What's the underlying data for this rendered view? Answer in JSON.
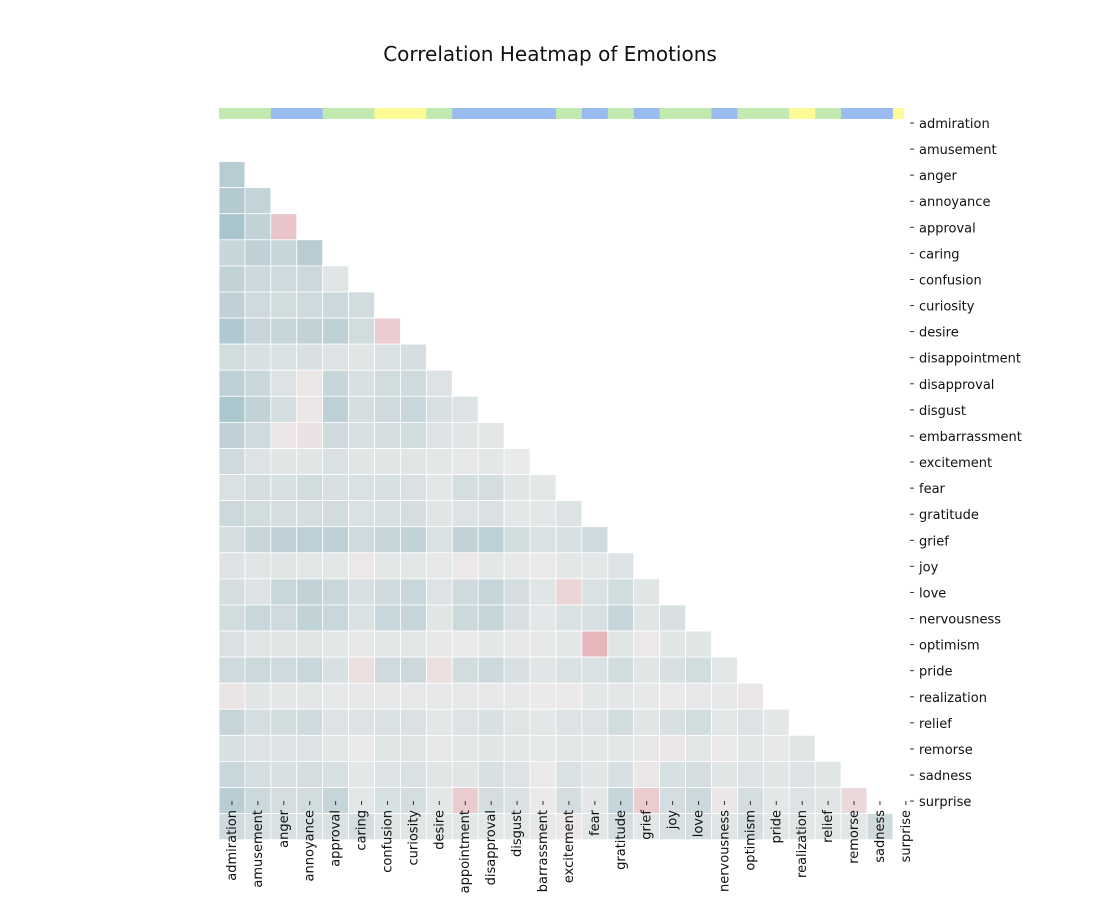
{
  "chart_data": {
    "type": "heatmap",
    "title": "Correlation Heatmap of Emotions",
    "xlabel": "",
    "ylabel": "",
    "categories": [
      "admiration",
      "amusement",
      "anger",
      "annoyance",
      "approval",
      "caring",
      "confusion",
      "curiosity",
      "desire",
      "disappointment",
      "disapproval",
      "disgust",
      "embarrassment",
      "excitement",
      "fear",
      "gratitude",
      "grief",
      "joy",
      "love",
      "nervousness",
      "optimism",
      "pride",
      "realization",
      "relief",
      "remorse",
      "sadness",
      "surprise"
    ],
    "x_tick_labels": [
      "admiration",
      "amusement",
      "anger",
      "annoyance",
      "approval",
      "caring",
      "confusion",
      "curiosity",
      "desire",
      "appointment",
      "disapproval",
      "disgust",
      "barrassment",
      "excitement",
      "fear",
      "gratitude",
      "grief",
      "joy",
      "love",
      "nervousness",
      "optimism",
      "pride",
      "realization",
      "relief",
      "remorse",
      "sadness",
      "surprise"
    ],
    "mask": "lower-triangle",
    "colorbar": false,
    "cluster_colors": [
      "#c2eab0",
      "#c2eab0",
      "#99bbf0",
      "#99bbf0",
      "#c2eab0",
      "#c2eab0",
      "#fdfb98",
      "#fdfb98",
      "#c2eab0",
      "#99bbf0",
      "#99bbf0",
      "#99bbf0",
      "#99bbf0",
      "#c2eab0",
      "#99bbf0",
      "#c2eab0",
      "#99bbf0",
      "#c2eab0",
      "#c2eab0",
      "#99bbf0",
      "#c2eab0",
      "#c2eab0",
      "#fdfb98",
      "#c2eab0",
      "#99bbf0",
      "#99bbf0",
      "#fdfb98"
    ],
    "neg_color": "#e8b0b6",
    "pos_color": "#a8c4cc",
    "neutral_color": "#ececec",
    "values": [
      [
        1.0
      ],
      [
        0.35,
        1.0
      ],
      [
        0.38,
        0.27,
        1.0
      ],
      [
        0.45,
        0.28,
        -0.3,
        1.0
      ],
      [
        0.25,
        0.3,
        0.25,
        0.35,
        1.0
      ],
      [
        0.28,
        0.22,
        0.2,
        0.22,
        0.08,
        1.0
      ],
      [
        0.3,
        0.2,
        0.18,
        0.2,
        0.22,
        0.18,
        1.0
      ],
      [
        0.4,
        0.25,
        0.25,
        0.28,
        0.3,
        0.18,
        -0.25,
        1.0
      ],
      [
        0.18,
        0.14,
        0.12,
        0.14,
        0.1,
        0.08,
        0.12,
        0.15,
        1.0
      ],
      [
        0.32,
        0.24,
        0.1,
        -0.05,
        0.25,
        0.14,
        0.18,
        0.2,
        0.1,
        1.0
      ],
      [
        0.42,
        0.28,
        0.16,
        -0.05,
        0.32,
        0.16,
        0.2,
        0.24,
        0.14,
        0.1,
        1.0
      ],
      [
        0.3,
        0.2,
        -0.05,
        -0.08,
        0.2,
        0.14,
        0.16,
        0.18,
        0.1,
        0.08,
        0.06,
        1.0
      ],
      [
        0.2,
        0.1,
        0.08,
        0.08,
        0.12,
        0.08,
        0.08,
        0.08,
        0.06,
        0.04,
        0.06,
        0.02,
        1.0
      ],
      [
        0.12,
        0.16,
        0.14,
        0.18,
        0.14,
        0.12,
        0.14,
        0.12,
        0.06,
        0.16,
        0.16,
        0.08,
        0.06,
        1.0
      ],
      [
        0.22,
        0.18,
        0.16,
        0.16,
        0.18,
        0.12,
        0.14,
        0.16,
        0.08,
        0.1,
        0.12,
        0.06,
        0.06,
        0.1,
        1.0
      ],
      [
        0.16,
        0.25,
        0.3,
        0.32,
        0.3,
        0.2,
        0.26,
        0.28,
        0.12,
        0.28,
        0.32,
        0.18,
        0.12,
        0.14,
        0.2,
        1.0
      ],
      [
        0.1,
        0.08,
        0.08,
        0.06,
        0.06,
        -0.03,
        0.06,
        0.06,
        0.04,
        -0.03,
        0.06,
        0.04,
        -0.02,
        0.06,
        0.06,
        0.1,
        1.0
      ],
      [
        0.16,
        0.1,
        0.24,
        0.28,
        0.24,
        0.14,
        0.2,
        0.24,
        0.1,
        0.2,
        0.26,
        0.16,
        0.08,
        -0.18,
        0.12,
        0.18,
        0.08,
        1.0
      ],
      [
        0.18,
        0.24,
        0.2,
        0.28,
        0.24,
        0.12,
        0.24,
        0.26,
        0.08,
        0.22,
        0.26,
        0.14,
        0.06,
        0.12,
        0.14,
        0.26,
        0.08,
        0.14,
        1.0
      ],
      [
        0.12,
        0.08,
        0.08,
        0.08,
        0.06,
        0.04,
        0.06,
        0.06,
        0.04,
        -0.02,
        0.06,
        0.04,
        0.04,
        0.06,
        -0.4,
        0.08,
        -0.03,
        0.08,
        0.08,
        1.0
      ],
      [
        0.2,
        0.22,
        0.2,
        0.24,
        0.14,
        -0.1,
        0.2,
        0.22,
        -0.1,
        0.18,
        0.22,
        0.14,
        0.08,
        0.12,
        0.12,
        0.18,
        0.08,
        0.14,
        0.18,
        0.06,
        1.0
      ],
      [
        -0.06,
        0.08,
        0.06,
        0.06,
        0.04,
        0.04,
        0.04,
        0.04,
        0.04,
        0.04,
        0.04,
        0.04,
        -0.02,
        -0.02,
        0.06,
        0.06,
        0.04,
        -0.02,
        0.04,
        0.04,
        -0.04,
        1.0
      ],
      [
        0.26,
        0.16,
        0.18,
        0.2,
        0.1,
        0.1,
        0.12,
        0.12,
        0.06,
        0.1,
        0.14,
        0.08,
        0.06,
        0.1,
        0.1,
        0.18,
        0.08,
        0.14,
        0.18,
        0.06,
        0.1,
        0.06,
        1.0
      ],
      [
        0.14,
        0.1,
        0.1,
        0.1,
        0.06,
        -0.02,
        0.08,
        0.08,
        0.04,
        0.06,
        0.08,
        0.06,
        0.04,
        0.06,
        0.06,
        0.06,
        0.04,
        -0.04,
        0.06,
        -0.02,
        0.06,
        0.04,
        0.08,
        1.0
      ],
      [
        0.24,
        0.16,
        0.14,
        0.16,
        0.14,
        0.06,
        0.1,
        0.12,
        0.08,
        0.08,
        0.14,
        0.1,
        -0.02,
        0.12,
        0.08,
        0.14,
        -0.04,
        0.14,
        0.16,
        0.08,
        0.1,
        0.08,
        0.1,
        0.08,
        1.0
      ],
      [
        0.34,
        0.22,
        0.16,
        0.18,
        0.26,
        0.06,
        0.14,
        0.16,
        0.06,
        -0.25,
        0.16,
        0.12,
        -0.02,
        0.16,
        0.06,
        0.26,
        -0.25,
        0.16,
        0.22,
        -0.04,
        0.16,
        0.06,
        0.1,
        0.08,
        -0.15,
        1.0
      ],
      [
        0.2,
        0.14,
        0.12,
        0.12,
        0.12,
        0.16,
        0.08,
        0.08,
        0.06,
        0.06,
        0.06,
        0.06,
        0.04,
        -0.03,
        0.06,
        0.16,
        0.06,
        0.14,
        0.16,
        0.08,
        0.16,
        0.06,
        0.08,
        0.06,
        0.06,
        0.2,
        1.0
      ]
    ]
  }
}
